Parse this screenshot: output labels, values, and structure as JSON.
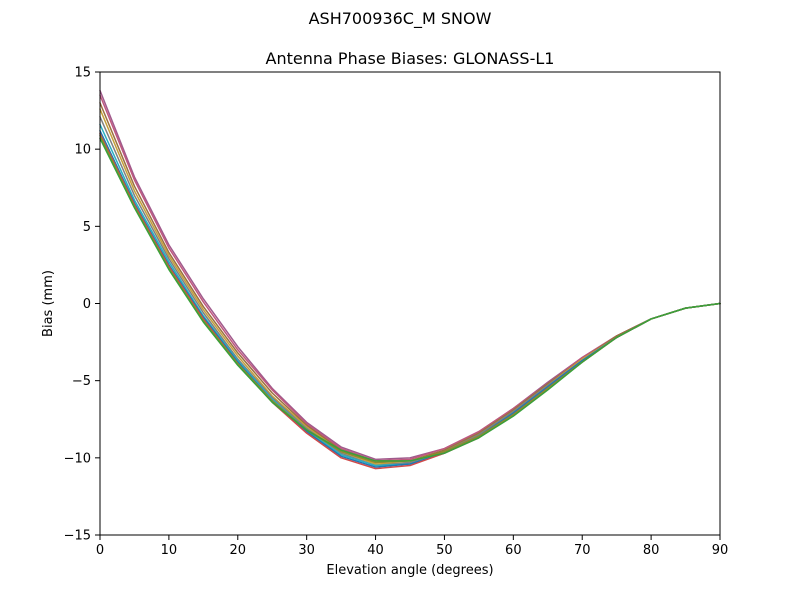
{
  "figure": {
    "suptitle": "ASH700936C_M    SNOW"
  },
  "chart_data": {
    "type": "line",
    "title": "Antenna Phase Biases: GLONASS-L1",
    "xlabel": "Elevation angle (degrees)",
    "ylabel": "Bias (mm)",
    "xlim": [
      0,
      90
    ],
    "ylim": [
      -15,
      15
    ],
    "xticks": [
      0,
      10,
      20,
      30,
      40,
      50,
      60,
      70,
      80,
      90
    ],
    "xtick_labels": [
      "0",
      "10",
      "20",
      "30",
      "40",
      "50",
      "60",
      "70",
      "80",
      "90"
    ],
    "yticks": [
      -15,
      -10,
      -5,
      0,
      5,
      10,
      15
    ],
    "ytick_labels": [
      "−15",
      "−10",
      "−5",
      "0",
      "5",
      "10",
      "15"
    ],
    "grid": false,
    "x": [
      0,
      5,
      10,
      15,
      20,
      25,
      30,
      35,
      40,
      45,
      50,
      55,
      60,
      65,
      70,
      75,
      80,
      85,
      90
    ],
    "series": [
      {
        "color": "#a05a8c",
        "values": [
          13.8,
          8.2,
          3.8,
          0.3,
          -2.8,
          -5.5,
          -7.7,
          -9.3,
          -10.1,
          -10.0,
          -9.4,
          -8.3,
          -6.8,
          -5.1,
          -3.5,
          -2.1,
          -1.0,
          -0.3,
          0.0
        ]
      },
      {
        "color": "#c0587e",
        "values": [
          13.5,
          8.0,
          3.6,
          0.1,
          -3.0,
          -5.6,
          -7.8,
          -9.4,
          -10.2,
          -10.1,
          -9.4,
          -8.3,
          -6.8,
          -5.2,
          -3.5,
          -2.1,
          -1.0,
          -0.3,
          0.0
        ]
      },
      {
        "color": "#9a7040",
        "values": [
          13.0,
          7.6,
          3.3,
          -0.2,
          -3.2,
          -5.8,
          -7.9,
          -9.5,
          -10.3,
          -10.2,
          -9.5,
          -8.4,
          -6.9,
          -5.2,
          -3.6,
          -2.1,
          -1.0,
          -0.3,
          0.0
        ]
      },
      {
        "color": "#c5a03a",
        "values": [
          12.6,
          7.3,
          3.1,
          -0.4,
          -3.4,
          -6.0,
          -8.0,
          -9.6,
          -10.4,
          -10.3,
          -9.6,
          -8.5,
          -7.0,
          -5.3,
          -3.6,
          -2.2,
          -1.0,
          -0.3,
          0.0
        ]
      },
      {
        "color": "#808080",
        "values": [
          12.1,
          7.0,
          2.9,
          -0.6,
          -3.6,
          -6.1,
          -8.1,
          -9.7,
          -10.5,
          -10.3,
          -9.6,
          -8.5,
          -7.0,
          -5.3,
          -3.7,
          -2.2,
          -1.0,
          -0.3,
          0.0
        ]
      },
      {
        "color": "#2ab0c0",
        "values": [
          11.6,
          6.7,
          2.7,
          -0.8,
          -3.7,
          -6.2,
          -8.2,
          -9.8,
          -10.5,
          -10.4,
          -9.7,
          -8.6,
          -7.1,
          -5.4,
          -3.7,
          -2.2,
          -1.0,
          -0.3,
          0.0
        ]
      },
      {
        "color": "#1f77b4",
        "values": [
          11.2,
          6.5,
          2.5,
          -0.9,
          -3.8,
          -6.3,
          -8.3,
          -9.9,
          -10.6,
          -10.4,
          -9.7,
          -8.6,
          -7.1,
          -5.4,
          -3.7,
          -2.2,
          -1.0,
          -0.3,
          0.0
        ]
      },
      {
        "color": "#d04a4a",
        "values": [
          11.0,
          6.4,
          2.4,
          -1.0,
          -3.9,
          -6.4,
          -8.4,
          -10.0,
          -10.7,
          -10.5,
          -9.7,
          -8.7,
          -7.2,
          -5.5,
          -3.8,
          -2.2,
          -1.0,
          -0.3,
          0.0
        ]
      },
      {
        "color": "#8c8c2e",
        "values": [
          10.9,
          6.3,
          2.3,
          -1.1,
          -3.9,
          -6.3,
          -8.2,
          -9.6,
          -10.3,
          -10.2,
          -9.6,
          -8.6,
          -7.2,
          -5.5,
          -3.8,
          -2.2,
          -1.0,
          -0.3,
          0.0
        ]
      },
      {
        "color": "#3aa03a",
        "values": [
          10.7,
          6.2,
          2.2,
          -1.2,
          -4.0,
          -6.4,
          -8.2,
          -9.5,
          -10.2,
          -10.2,
          -9.7,
          -8.7,
          -7.3,
          -5.6,
          -3.8,
          -2.2,
          -1.0,
          -0.3,
          0.0
        ]
      }
    ]
  }
}
